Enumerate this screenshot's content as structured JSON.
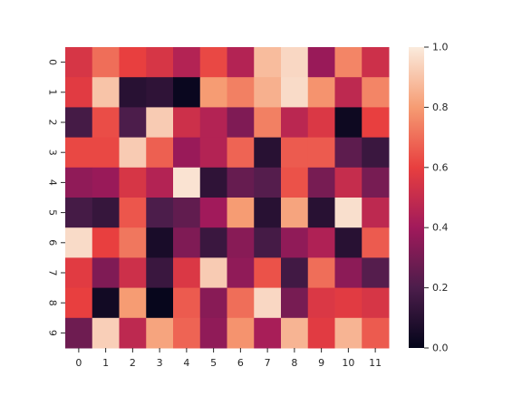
{
  "chart_data": {
    "type": "heatmap",
    "x_categories": [
      "0",
      "1",
      "2",
      "3",
      "4",
      "5",
      "6",
      "7",
      "8",
      "9",
      "10",
      "11"
    ],
    "y_categories": [
      "0",
      "1",
      "2",
      "3",
      "4",
      "5",
      "6",
      "7",
      "8",
      "9"
    ],
    "values": [
      [
        0.55,
        0.7,
        0.6,
        0.55,
        0.45,
        0.62,
        0.45,
        0.88,
        0.95,
        0.38,
        0.75,
        0.52
      ],
      [
        0.58,
        0.9,
        0.1,
        0.12,
        0.02,
        0.8,
        0.74,
        0.85,
        0.96,
        0.78,
        0.48,
        0.75
      ],
      [
        0.18,
        0.63,
        0.2,
        0.92,
        0.52,
        0.45,
        0.32,
        0.74,
        0.47,
        0.56,
        0.03,
        0.6
      ],
      [
        0.62,
        0.62,
        0.92,
        0.67,
        0.38,
        0.45,
        0.68,
        0.1,
        0.66,
        0.66,
        0.24,
        0.15
      ],
      [
        0.36,
        0.38,
        0.55,
        0.45,
        0.98,
        0.12,
        0.26,
        0.22,
        0.64,
        0.3,
        0.5,
        0.3
      ],
      [
        0.18,
        0.14,
        0.65,
        0.2,
        0.25,
        0.4,
        0.8,
        0.1,
        0.82,
        0.1,
        0.97,
        0.48
      ],
      [
        0.96,
        0.6,
        0.72,
        0.06,
        0.32,
        0.15,
        0.34,
        0.18,
        0.36,
        0.44,
        0.1,
        0.66
      ],
      [
        0.58,
        0.32,
        0.52,
        0.15,
        0.56,
        0.92,
        0.36,
        0.64,
        0.17,
        0.7,
        0.35,
        0.22
      ],
      [
        0.6,
        0.04,
        0.8,
        0.01,
        0.66,
        0.34,
        0.7,
        0.95,
        0.3,
        0.56,
        0.58,
        0.55
      ],
      [
        0.28,
        0.93,
        0.48,
        0.82,
        0.68,
        0.36,
        0.78,
        0.42,
        0.86,
        0.58,
        0.86,
        0.66
      ]
    ],
    "colorbar": {
      "min": 0.0,
      "max": 1.0,
      "ticks": [
        "0.0",
        "0.2",
        "0.4",
        "0.6",
        "0.8",
        "1.0"
      ],
      "colormap": "rocket",
      "stops": [
        "#03051a",
        "#4c1d4b",
        "#a11a5b",
        "#e83f3f",
        "#f69c73",
        "#faebdd"
      ]
    },
    "title": "",
    "xlabel": "",
    "ylabel": ""
  }
}
